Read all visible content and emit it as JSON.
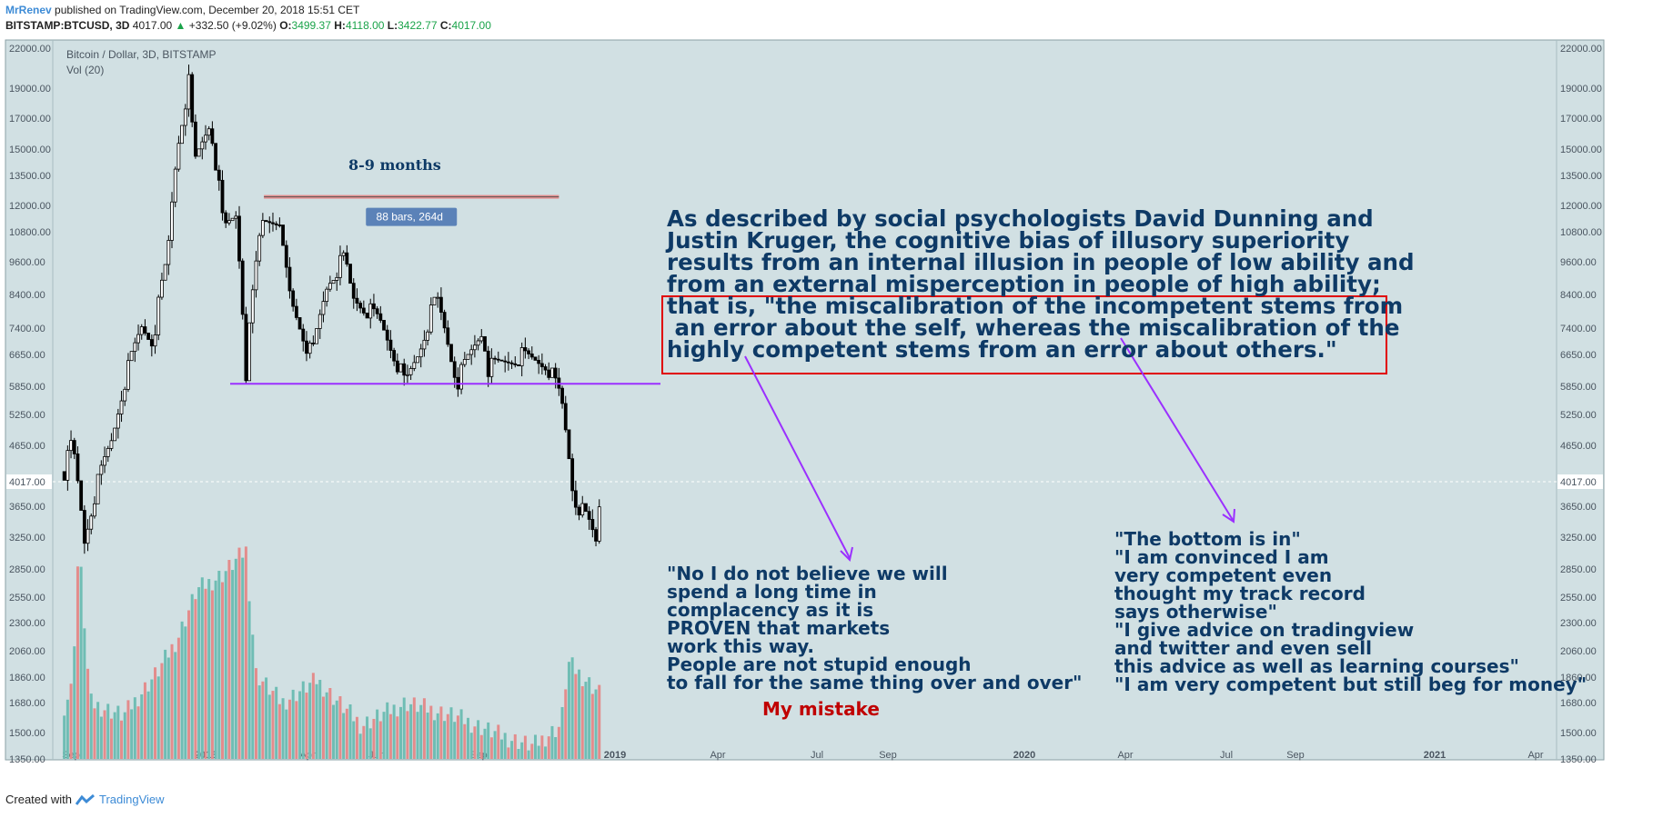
{
  "header": {
    "author": "MrRenev",
    "published": "published on TradingView.com, December 20, 2018 15:51 CET",
    "symbol": "BITSTAMP:BTCUSD, 3D",
    "last": "4017.00",
    "change": "+332.50 (+9.02%)",
    "o_label": "O:",
    "o": "3499.37",
    "h_label": "H:",
    "h": "4118.00",
    "l_label": "L:",
    "l": "3422.77",
    "c_label": "C:",
    "c": "4017.00"
  },
  "footer": {
    "created_with": "Created with",
    "brand": "TradingView"
  },
  "chart_data": {
    "type": "candlestick",
    "title": "Bitcoin / Dollar, 3D, BITSTAMP",
    "volume_label": "Vol (20)",
    "y_tick_labels": [
      "22000.00",
      "19000.00",
      "17000.00",
      "15000.00",
      "13500.00",
      "12000.00",
      "10800.00",
      "9600.00",
      "8400.00",
      "7400.00",
      "6650.00",
      "5850.00",
      "5250.00",
      "4650.00",
      "4017.00",
      "3650.00",
      "3250.00",
      "2850.00",
      "2550.00",
      "2300.00",
      "2060.00",
      "1860.00",
      "1680.00",
      "1500.00",
      "1350.00"
    ],
    "x_tick_labels": [
      "Sep",
      "2018",
      "Apr",
      "Jun",
      "Sep",
      "2019",
      "Apr",
      "Jul",
      "Sep",
      "2020",
      "Apr",
      "Jul",
      "Sep",
      "2021",
      "Apr"
    ],
    "last_price": "4017.00",
    "price_path": [
      [
        "2017-08-28",
        4200
      ],
      [
        "2017-09-04",
        4700
      ],
      [
        "2017-09-15",
        3200
      ],
      [
        "2017-09-25",
        3900
      ],
      [
        "2017-10-10",
        4800
      ],
      [
        "2017-10-20",
        5900
      ],
      [
        "2017-11-05",
        7400
      ],
      [
        "2017-11-15",
        7000
      ],
      [
        "2017-11-28",
        9700
      ],
      [
        "2017-12-07",
        15000
      ],
      [
        "2017-12-17",
        19200
      ],
      [
        "2017-12-22",
        14000
      ],
      [
        "2018-01-05",
        16500
      ],
      [
        "2018-01-17",
        10800
      ],
      [
        "2018-01-28",
        11500
      ],
      [
        "2018-02-06",
        6200
      ],
      [
        "2018-02-20",
        11200
      ],
      [
        "2018-03-05",
        11400
      ],
      [
        "2018-03-18",
        8200
      ],
      [
        "2018-04-01",
        6900
      ],
      [
        "2018-04-06",
        6600
      ],
      [
        "2018-04-20",
        8800
      ],
      [
        "2018-05-05",
        9700
      ],
      [
        "2018-05-12",
        8300
      ],
      [
        "2018-06-05",
        7600
      ],
      [
        "2018-06-28",
        5900
      ],
      [
        "2018-07-10",
        6700
      ],
      [
        "2018-07-26",
        8300
      ],
      [
        "2018-08-10",
        6300
      ],
      [
        "2018-08-14",
        6000
      ],
      [
        "2018-09-05",
        7300
      ],
      [
        "2018-09-10",
        6300
      ],
      [
        "2018-10-10",
        6600
      ],
      [
        "2018-11-01",
        6400
      ],
      [
        "2018-11-14",
        5600
      ],
      [
        "2018-11-25",
        3800
      ],
      [
        "2018-12-10",
        3400
      ],
      [
        "2018-12-15",
        3200
      ],
      [
        "2018-12-20",
        4017
      ]
    ],
    "volume_path": [
      [
        "2017-08-28",
        1680
      ],
      [
        "2017-09-04",
        1800
      ],
      [
        "2017-09-10",
        2700
      ],
      [
        "2017-09-20",
        1700
      ],
      [
        "2017-10-20",
        1620
      ],
      [
        "2017-11-20",
        1900
      ],
      [
        "2017-12-07",
        2100
      ],
      [
        "2017-12-24",
        2400
      ],
      [
        "2018-01-16",
        2500
      ],
      [
        "2018-02-06",
        2650
      ],
      [
        "2018-02-15",
        1880
      ],
      [
        "2018-03-10",
        1700
      ],
      [
        "2018-04-10",
        1840
      ],
      [
        "2018-05-20",
        1560
      ],
      [
        "2018-06-28",
        1700
      ],
      [
        "2018-08-10",
        1620
      ],
      [
        "2018-09-20",
        1500
      ],
      [
        "2018-10-20",
        1430
      ],
      [
        "2018-11-14",
        1560
      ],
      [
        "2018-11-20",
        1950
      ],
      [
        "2018-12-05",
        1850
      ],
      [
        "2018-12-20",
        1750
      ]
    ],
    "support_level": 5920,
    "measure": {
      "from": "2018-02-22",
      "to": "2018-11-12",
      "price": 12300,
      "label": "88 bars, 264d"
    },
    "colors": {
      "background": "#d1e0e3",
      "up_candle": "#000000",
      "down_candle": "#000000",
      "volume_up": "#6fbdb4",
      "volume_down": "#e38c8c",
      "support_line": "#9b30ff",
      "arrow": "#9b30ff",
      "highlight_box": "#e00000",
      "measure_bar": "#e08a8a",
      "measure_label_bg": "#5b82b8",
      "text": "#0e3a66"
    }
  },
  "annotations": {
    "months": "8-9 months",
    "main_quote": "As described by social psychologists David Dunning and\nJustin Kruger, the cognitive bias of illusory superiority\nresults from an internal illusion in people of low ability and\nfrom an external misperception in people of high ability;\nthat is, \"the miscalibration of the incompetent stems from\n an error about the self, whereas the miscalibration of the\nhighly competent stems from an error about others.\"",
    "quote_left": "\"No I do not believe we will\nspend a long time in\ncomplacency as it is\nPROVEN that markets\nwork this way.\nPeople are not stupid enough\nto fall for the same thing over and over\"",
    "my_mistake": "My mistake",
    "quote_right": "\"The bottom is in\"\n\"I am convinced I am\nvery competent even\nthought my track record\nsays otherwise\"\n\"I give advice on tradingview\nand twitter and even sell\nthis advice as well as learning courses\"\n\"I am very competent but still beg for money\""
  }
}
